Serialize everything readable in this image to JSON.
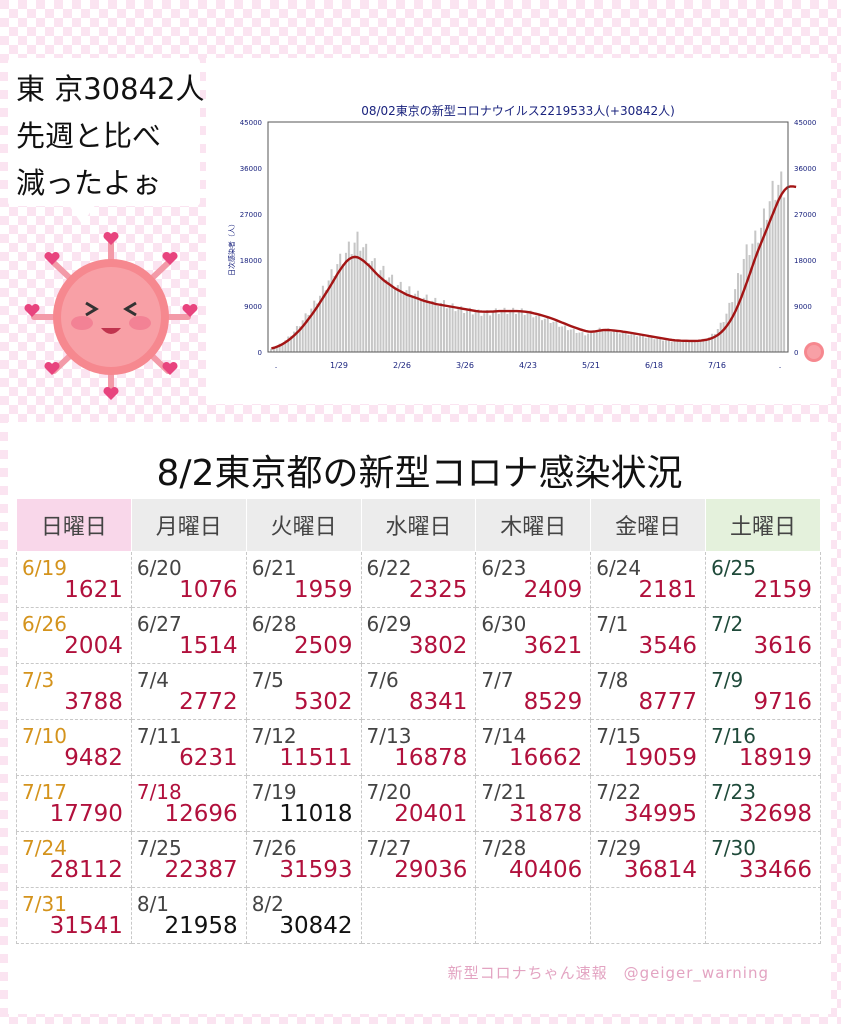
{
  "bubble": {
    "line1": "東 京30842人",
    "line2": "先週と比べ",
    "line3": "減ったよぉ"
  },
  "chart_data": {
    "type": "bar",
    "title": "08/02東京の新型コロナウイルス2219533人(+30842人)",
    "ylabel": "日次感染者（人）",
    "ylim": [
      0,
      45000
    ],
    "yticks": [
      "0",
      "9000",
      "18000",
      "27000",
      "36000",
      "45000"
    ],
    "xticks": [
      ".",
      "1/29",
      "2/26",
      "3/26",
      "4/23",
      "5/21",
      "6/18",
      "7/16",
      "."
    ],
    "values": [
      600,
      900,
      1200,
      1500,
      1800,
      2300,
      2800,
      3400,
      4000,
      4700,
      5400,
      6200,
      7000,
      7800,
      8500,
      9300,
      10200,
      11000,
      12000,
      13000,
      14000,
      15000,
      16000,
      17200,
      17800,
      18500,
      19400,
      20000,
      20600,
      21400,
      21800,
      21300,
      20500,
      19600,
      18700,
      17800,
      17000,
      16400,
      16000,
      15600,
      15200,
      14600,
      14000,
      13500,
      13100,
      12700,
      12400,
      12100,
      11900,
      11700,
      11400,
      11100,
      10800,
      10600,
      10400,
      10200,
      10000,
      9800,
      9700,
      9600,
      9400,
      9200,
      9000,
      8800,
      8600,
      8400,
      8300,
      8200,
      8100,
      8000,
      7900,
      7800,
      7700,
      7600,
      7600,
      7600,
      7700,
      7800,
      7900,
      8000,
      8000,
      8000,
      8000,
      8000,
      8000,
      8000,
      8000,
      7900,
      7800,
      7700,
      7500,
      7300,
      7100,
      6900,
      6700,
      6500,
      6300,
      6100,
      5900,
      5600,
      5300,
      5000,
      4800,
      4600,
      4400,
      4200,
      4000,
      3800,
      3600,
      3500,
      3600,
      3800,
      4000,
      4200,
      4400,
      4500,
      4400,
      4300,
      4200,
      4100,
      4000,
      3900,
      3800,
      3700,
      3600,
      3500,
      3400,
      3300,
      3200,
      3100,
      3000,
      2900,
      2800,
      2700,
      2600,
      2500,
      2400,
      2300,
      2200,
      2100,
      2100,
      2100,
      2100,
      2100,
      2100,
      2100,
      2100,
      2100,
      2200,
      2300,
      2400,
      2600,
      2900,
      3300,
      3800,
      4500,
      5300,
      6300,
      7500,
      8900,
      10500,
      12300,
      14300,
      16300,
      18200,
      19500,
      20400,
      21200,
      22000,
      23000,
      24300,
      26000,
      27800,
      29500,
      31000,
      32000,
      32700,
      32700,
      32500
    ],
    "avg": [
      700,
      850,
      1050,
      1300,
      1600,
      1950,
      2350,
      2800,
      3300,
      3850,
      4450,
      5100,
      5800,
      6550,
      7300,
      8100,
      8950,
      9800,
      10700,
      11600,
      12500,
      13450,
      14400,
      15350,
      16200,
      17000,
      17700,
      18200,
      18500,
      18600,
      18500,
      18200,
      17800,
      17300,
      16800,
      16200,
      15600,
      15000,
      14500,
      14000,
      13600,
      13200,
      12800,
      12400,
      12100,
      11800,
      11500,
      11200,
      11000,
      10800,
      10600,
      10400,
      10200,
      10000,
      9850,
      9700,
      9550,
      9400,
      9300,
      9200,
      9100,
      9000,
      8900,
      8800,
      8700,
      8600,
      8500,
      8400,
      8300,
      8200,
      8100,
      8000,
      7950,
      7900,
      7880,
      7880,
      7900,
      7930,
      7960,
      8000,
      8000,
      8000,
      8000,
      8000,
      8000,
      8000,
      7980,
      7940,
      7880,
      7800,
      7700,
      7580,
      7450,
      7300,
      7140,
      6970,
      6790,
      6600,
      6400,
      6180,
      5950,
      5720,
      5490,
      5260,
      5040,
      4830,
      4630,
      4440,
      4260,
      4100,
      4000,
      3980,
      4020,
      4100,
      4200,
      4280,
      4300,
      4280,
      4240,
      4190,
      4130,
      4060,
      3980,
      3900,
      3810,
      3720,
      3620,
      3520,
      3420,
      3320,
      3220,
      3120,
      3020,
      2920,
      2820,
      2720,
      2620,
      2520,
      2430,
      2350,
      2290,
      2250,
      2220,
      2200,
      2190,
      2180,
      2180,
      2180,
      2190,
      2230,
      2300,
      2400,
      2550,
      2760,
      3040,
      3400,
      3860,
      4430,
      5120,
      5950,
      6920,
      8040,
      9300,
      10700,
      12200,
      13800,
      15400,
      17000,
      18600,
      20100,
      21500,
      22900,
      24300,
      25700,
      27100,
      28500,
      29800,
      30900,
      31700,
      32200,
      32400,
      32400,
      32300
    ]
  },
  "panel": {
    "title": "8/2東京都の新型コロナ感染状況",
    "weekdays": [
      "日曜日",
      "月曜日",
      "火曜日",
      "水曜日",
      "木曜日",
      "金曜日",
      "土曜日"
    ],
    "weeks": [
      [
        {
          "d": "6/19",
          "n": "1621"
        },
        {
          "d": "6/20",
          "n": "1076"
        },
        {
          "d": "6/21",
          "n": "1959"
        },
        {
          "d": "6/22",
          "n": "2325"
        },
        {
          "d": "6/23",
          "n": "2409"
        },
        {
          "d": "6/24",
          "n": "2181"
        },
        {
          "d": "6/25",
          "n": "2159"
        }
      ],
      [
        {
          "d": "6/26",
          "n": "2004"
        },
        {
          "d": "6/27",
          "n": "1514"
        },
        {
          "d": "6/28",
          "n": "2509"
        },
        {
          "d": "6/29",
          "n": "3802"
        },
        {
          "d": "6/30",
          "n": "3621"
        },
        {
          "d": "7/1",
          "n": "3546"
        },
        {
          "d": "7/2",
          "n": "3616"
        }
      ],
      [
        {
          "d": "7/3",
          "n": "3788"
        },
        {
          "d": "7/4",
          "n": "2772"
        },
        {
          "d": "7/5",
          "n": "5302"
        },
        {
          "d": "7/6",
          "n": "8341"
        },
        {
          "d": "7/7",
          "n": "8529"
        },
        {
          "d": "7/8",
          "n": "8777"
        },
        {
          "d": "7/9",
          "n": "9716"
        }
      ],
      [
        {
          "d": "7/10",
          "n": "9482"
        },
        {
          "d": "7/11",
          "n": "6231"
        },
        {
          "d": "7/12",
          "n": "11511"
        },
        {
          "d": "7/13",
          "n": "16878"
        },
        {
          "d": "7/14",
          "n": "16662"
        },
        {
          "d": "7/15",
          "n": "19059"
        },
        {
          "d": "7/16",
          "n": "18919"
        }
      ],
      [
        {
          "d": "7/17",
          "n": "17790"
        },
        {
          "d": "7/18",
          "n": "12696"
        },
        {
          "d": "7/19",
          "n": "11018"
        },
        {
          "d": "7/20",
          "n": "20401"
        },
        {
          "d": "7/21",
          "n": "31878"
        },
        {
          "d": "7/22",
          "n": "34995"
        },
        {
          "d": "7/23",
          "n": "32698"
        }
      ],
      [
        {
          "d": "7/24",
          "n": "28112"
        },
        {
          "d": "7/25",
          "n": "22387"
        },
        {
          "d": "7/26",
          "n": "31593"
        },
        {
          "d": "7/27",
          "n": "29036"
        },
        {
          "d": "7/28",
          "n": "40406"
        },
        {
          "d": "7/29",
          "n": "36814"
        },
        {
          "d": "7/30",
          "n": "33466"
        }
      ],
      [
        {
          "d": "7/31",
          "n": "31541"
        },
        {
          "d": "8/1",
          "n": "21958"
        },
        {
          "d": "8/2",
          "n": "30842"
        },
        {
          "d": "",
          "n": ""
        },
        {
          "d": "",
          "n": ""
        },
        {
          "d": "",
          "n": ""
        },
        {
          "d": "",
          "n": ""
        }
      ]
    ],
    "credit": "新型コロナちゃん速報　@geiger_warning"
  },
  "colors": {
    "bar": "#c6c6c6",
    "avg_line": "#a31515",
    "accent": "#b1103c",
    "axis_text": "#1a237e"
  }
}
